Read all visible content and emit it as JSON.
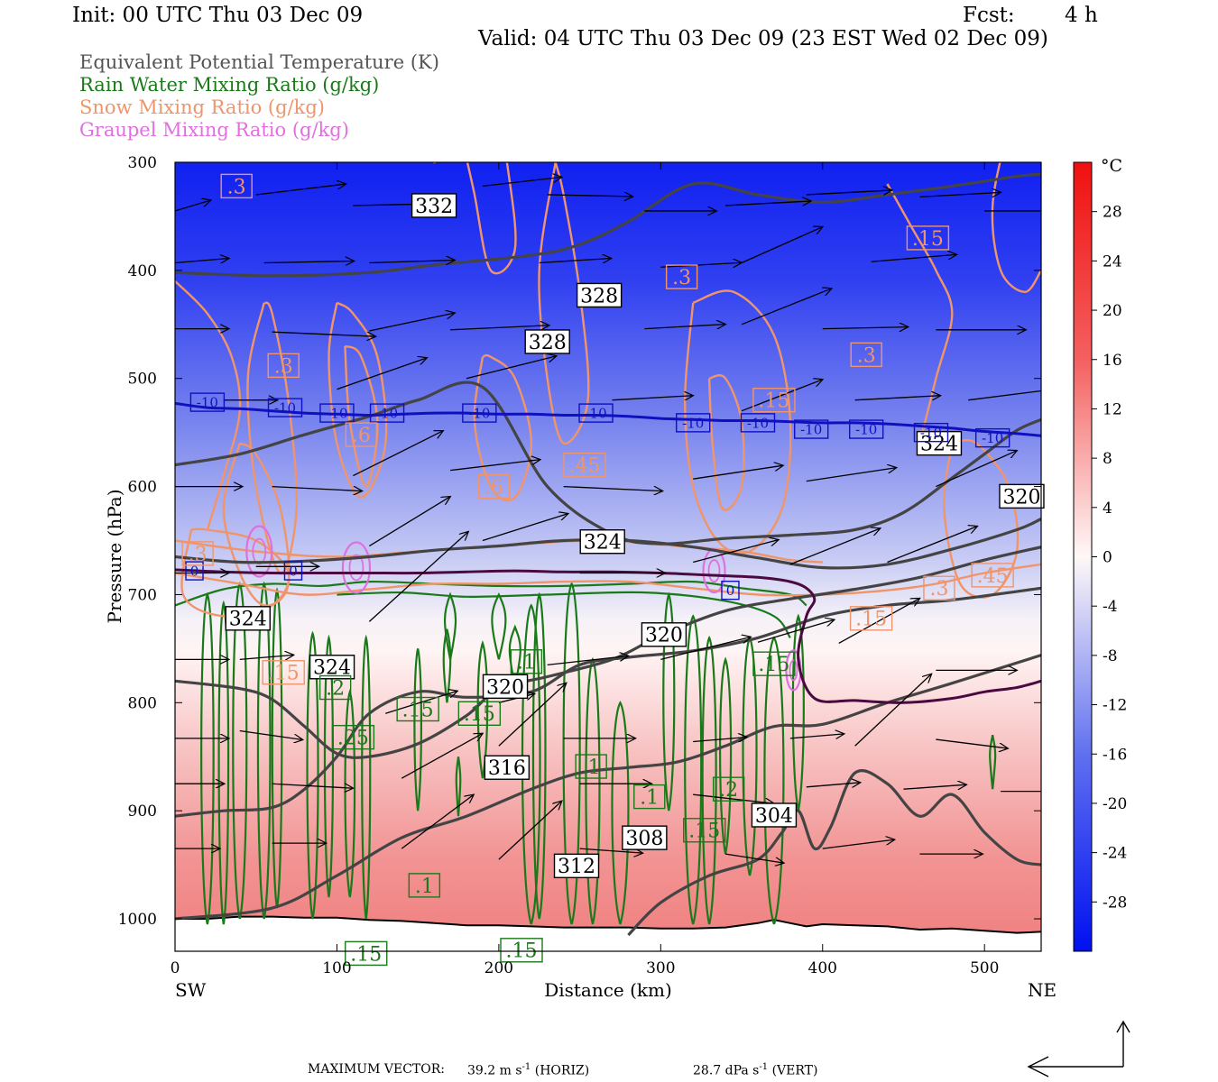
{
  "header": {
    "init": "Init: 00 UTC Thu 03 Dec 09",
    "fcst_label": "Fcst:",
    "fcst_value": "4 h",
    "valid": "Valid: 04 UTC Thu 03 Dec 09 (23 EST Wed 02 Dec 09)"
  },
  "legend": [
    {
      "label": "Equivalent Potential Temperature (K)",
      "color": "#555555"
    },
    {
      "label": "Rain Water Mixing Ratio (g/kg)",
      "color": "#1a7a1a"
    },
    {
      "label": "Snow Mixing Ratio (g/kg)",
      "color": "#f0956a"
    },
    {
      "label": "Graupel Mixing Ratio (g/kg)",
      "color": "#e070e0"
    }
  ],
  "chart_data": {
    "type": "heatmap",
    "title": "",
    "xlabel": "Distance (km)",
    "ylabel": "Pressure (hPa)",
    "xlim": [
      0,
      535
    ],
    "ylim": [
      1030,
      300
    ],
    "x_ticks": [
      0,
      100,
      200,
      300,
      400,
      500
    ],
    "y_ticks": [
      300,
      400,
      500,
      600,
      700,
      800,
      900,
      1000
    ],
    "x_end_labels": {
      "left": "SW",
      "right": "NE"
    },
    "colorbar": {
      "unit": "°C",
      "ticks": [
        28,
        24,
        20,
        16,
        12,
        8,
        4,
        0,
        -4,
        -8,
        -12,
        -16,
        -20,
        -24,
        -28
      ],
      "range": [
        -32,
        32
      ]
    },
    "isotherms": {
      "minus10": {
        "label": "-10",
        "color": "#1010c0",
        "points": [
          [
            0,
            523
          ],
          [
            20,
            527
          ],
          [
            40,
            528
          ],
          [
            60,
            530
          ],
          [
            80,
            532
          ],
          [
            100,
            533
          ],
          [
            120,
            534
          ],
          [
            140,
            533
          ],
          [
            160,
            532
          ],
          [
            180,
            532
          ],
          [
            200,
            533
          ],
          [
            220,
            533
          ],
          [
            240,
            534
          ],
          [
            260,
            534
          ],
          [
            280,
            535
          ],
          [
            300,
            537
          ],
          [
            320,
            538
          ],
          [
            340,
            539
          ],
          [
            360,
            539
          ],
          [
            380,
            540
          ],
          [
            400,
            541
          ],
          [
            420,
            541
          ],
          [
            440,
            542
          ],
          [
            460,
            544
          ],
          [
            480,
            546
          ],
          [
            500,
            549
          ],
          [
            520,
            551
          ],
          [
            535,
            553
          ]
        ]
      },
      "zero": {
        "label": "0",
        "color": "#4a0a40",
        "points": [
          [
            0,
            677
          ],
          [
            30,
            679
          ],
          [
            60,
            680
          ],
          [
            90,
            680
          ],
          [
            120,
            680
          ],
          [
            150,
            680
          ],
          [
            180,
            679
          ],
          [
            210,
            678
          ],
          [
            240,
            679
          ],
          [
            270,
            679
          ],
          [
            300,
            680
          ],
          [
            330,
            682
          ],
          [
            360,
            684
          ],
          [
            380,
            688
          ],
          [
            390,
            694
          ],
          [
            395,
            705
          ],
          [
            390,
            720
          ],
          [
            385,
            760
          ],
          [
            395,
            796
          ],
          [
            420,
            798
          ],
          [
            450,
            800
          ],
          [
            480,
            796
          ],
          [
            500,
            790
          ],
          [
            520,
            786
          ],
          [
            535,
            780
          ]
        ]
      }
    },
    "theta_e": {
      "color": "#444444",
      "lines": [
        {
          "value": 332,
          "points": [
            [
              0,
              296
            ],
            [
              60,
              298
            ],
            [
              120,
              288
            ],
            [
              140,
              263
            ],
            [
              160,
              232
            ],
            [
              180,
              210
            ],
            [
              220,
              192
            ],
            [
              260,
              189
            ],
            [
              300,
              187
            ],
            [
              340,
              186
            ],
            [
              380,
              185
            ],
            [
              420,
              184
            ],
            [
              440,
              184
            ],
            [
              460,
              182
            ],
            [
              480,
              182
            ],
            [
              500,
              180
            ]
          ]
        },
        {
          "value": 328,
          "points": [
            [
              0,
              402
            ],
            [
              60,
              405
            ],
            [
              120,
              402
            ],
            [
              160,
              395
            ],
            [
              220,
              386
            ],
            [
              250,
              376
            ],
            [
              280,
              355
            ],
            [
              320,
              320
            ],
            [
              360,
              330
            ],
            [
              400,
              337
            ],
            [
              440,
              330
            ],
            [
              480,
              322
            ],
            [
              520,
              313
            ],
            [
              535,
              311
            ]
          ]
        },
        {
          "value": 324,
          "points": [
            [
              0,
              580
            ],
            [
              40,
              570
            ],
            [
              80,
              552
            ],
            [
              120,
              535
            ],
            [
              150,
              520
            ],
            [
              190,
              508
            ],
            [
              230,
              600
            ],
            [
              270,
              644
            ],
            [
              300,
              653
            ],
            [
              340,
              648
            ],
            [
              380,
              645
            ],
            [
              420,
              640
            ],
            [
              450,
              624
            ],
            [
              480,
              592
            ],
            [
              500,
              570
            ],
            [
              520,
              548
            ],
            [
              535,
              538
            ]
          ]
        },
        {
          "value": 320,
          "points": [
            [
              0,
              665
            ],
            [
              40,
              670
            ],
            [
              80,
              669
            ],
            [
              120,
              665
            ],
            [
              160,
              659
            ],
            [
              200,
              655
            ],
            [
              240,
              650
            ],
            [
              280,
              650
            ],
            [
              320,
              656
            ],
            [
              360,
              666
            ],
            [
              400,
              675
            ],
            [
              440,
              672
            ],
            [
              480,
              658
            ],
            [
              520,
              640
            ],
            [
              535,
              630
            ]
          ]
        },
        {
          "value": 316,
          "points": [
            [
              0,
              780
            ],
            [
              40,
              787
            ],
            [
              60,
              797
            ],
            [
              80,
              822
            ],
            [
              100,
              847
            ],
            [
              120,
              850
            ],
            [
              150,
              838
            ],
            [
              180,
              812
            ],
            [
              200,
              787
            ],
            [
              230,
              776
            ],
            [
              270,
              760
            ],
            [
              300,
              738
            ],
            [
              340,
              715
            ],
            [
              380,
              704
            ],
            [
              420,
              695
            ],
            [
              460,
              684
            ],
            [
              500,
              668
            ],
            [
              535,
              656
            ]
          ]
        },
        {
          "value": 312,
          "points": [
            [
              0,
              905
            ],
            [
              30,
              900
            ],
            [
              60,
              897
            ],
            [
              80,
              880
            ],
            [
              100,
              850
            ],
            [
              120,
              810
            ],
            [
              150,
              790
            ],
            [
              180,
              795
            ],
            [
              220,
              790
            ],
            [
              250,
              765
            ],
            [
              280,
              758
            ],
            [
              320,
              752
            ],
            [
              360,
              740
            ],
            [
              400,
              720
            ],
            [
              440,
              710
            ],
            [
              480,
              705
            ],
            [
              535,
              694
            ]
          ]
        },
        {
          "value": 308,
          "points": [
            [
              0,
              1000
            ],
            [
              60,
              990
            ],
            [
              100,
              960
            ],
            [
              140,
              925
            ],
            [
              180,
              905
            ],
            [
              220,
              880
            ],
            [
              250,
              865
            ],
            [
              280,
              860
            ],
            [
              310,
              855
            ],
            [
              340,
              840
            ],
            [
              370,
              822
            ],
            [
              400,
              820
            ],
            [
              440,
              800
            ],
            [
              480,
              782
            ],
            [
              535,
              756
            ]
          ]
        },
        {
          "value": 304,
          "points": [
            [
              280,
              1015
            ],
            [
              300,
              985
            ],
            [
              330,
              960
            ],
            [
              360,
              945
            ],
            [
              375,
              920
            ],
            [
              385,
              900
            ],
            [
              395,
              935
            ],
            [
              405,
              915
            ],
            [
              420,
              865
            ],
            [
              440,
              875
            ],
            [
              460,
              905
            ],
            [
              480,
              885
            ],
            [
              500,
              920
            ],
            [
              520,
              945
            ],
            [
              535,
              950
            ]
          ]
        }
      ]
    },
    "contour_labels": {
      "theta_e": [
        {
          "text": "332",
          "x": 160,
          "p": 340
        },
        {
          "text": "328",
          "x": 262,
          "p": 423
        },
        {
          "text": "328",
          "x": 230,
          "p": 466
        },
        {
          "text": "324",
          "x": 472,
          "p": 560
        },
        {
          "text": "324",
          "x": 264,
          "p": 651
        },
        {
          "text": "324",
          "x": 45,
          "p": 722
        },
        {
          "text": "324",
          "x": 97,
          "p": 767
        },
        {
          "text": "320",
          "x": 523,
          "p": 609
        },
        {
          "text": "320",
          "x": 302,
          "p": 737
        },
        {
          "text": "320",
          "x": 204,
          "p": 785
        },
        {
          "text": "316",
          "x": 205,
          "p": 860
        },
        {
          "text": "312",
          "x": 248,
          "p": 951
        },
        {
          "text": "308",
          "x": 290,
          "p": 925
        },
        {
          "text": "304",
          "x": 370,
          "p": 904
        }
      ],
      "temp": [
        {
          "text": "-10",
          "x": 20,
          "p": 522
        },
        {
          "text": "-10",
          "x": 68,
          "p": 527
        },
        {
          "text": "-10",
          "x": 100,
          "p": 532
        },
        {
          "text": "-10",
          "x": 131,
          "p": 532
        },
        {
          "text": "-10",
          "x": 188,
          "p": 532
        },
        {
          "text": "-10",
          "x": 260,
          "p": 532
        },
        {
          "text": "-10",
          "x": 320,
          "p": 541
        },
        {
          "text": "-10",
          "x": 360,
          "p": 541
        },
        {
          "text": "-10",
          "x": 393,
          "p": 547
        },
        {
          "text": "-10",
          "x": 427,
          "p": 547
        },
        {
          "text": "-10",
          "x": 467,
          "p": 550
        },
        {
          "text": "-10",
          "x": 505,
          "p": 555
        },
        {
          "text": "0",
          "x": 12,
          "p": 678
        },
        {
          "text": "0",
          "x": 73,
          "p": 678
        },
        {
          "text": "0",
          "x": 343,
          "p": 696
        }
      ],
      "snow": [
        {
          "text": ".3",
          "x": 38,
          "p": 322
        },
        {
          "text": ".15",
          "x": 465,
          "p": 370
        },
        {
          "text": ".3",
          "x": 313,
          "p": 406
        },
        {
          "text": ".3",
          "x": 67,
          "p": 488
        },
        {
          "text": ".3",
          "x": 427,
          "p": 478
        },
        {
          "text": ".6",
          "x": 115,
          "p": 552
        },
        {
          "text": ".45",
          "x": 253,
          "p": 580
        },
        {
          "text": ".6",
          "x": 197,
          "p": 600
        },
        {
          "text": ".15",
          "x": 370,
          "p": 520
        },
        {
          "text": ".3",
          "x": 14,
          "p": 662
        },
        {
          "text": ".3",
          "x": 472,
          "p": 694
        },
        {
          "text": ".45",
          "x": 505,
          "p": 682
        },
        {
          "text": ".15",
          "x": 430,
          "p": 722
        },
        {
          "text": ".15",
          "x": 67,
          "p": 772
        }
      ],
      "rain": [
        {
          "text": ".2",
          "x": 99,
          "p": 786
        },
        {
          "text": ".15",
          "x": 150,
          "p": 806
        },
        {
          "text": ".15",
          "x": 188,
          "p": 810
        },
        {
          "text": ".25",
          "x": 110,
          "p": 832
        },
        {
          "text": ".1",
          "x": 217,
          "p": 762
        },
        {
          "text": ".1",
          "x": 257,
          "p": 859
        },
        {
          "text": ".15",
          "x": 370,
          "p": 764
        },
        {
          "text": ".1",
          "x": 293,
          "p": 887
        },
        {
          "text": ".2",
          "x": 342,
          "p": 880
        },
        {
          "text": ".15",
          "x": 327,
          "p": 918
        },
        {
          "text": ".1",
          "x": 154,
          "p": 969
        },
        {
          "text": ".15",
          "x": 118,
          "p": 1032
        },
        {
          "text": ".15",
          "x": 214,
          "p": 1029
        }
      ]
    }
  },
  "footer": {
    "max_vector_label": "MAXIMUM VECTOR:",
    "horiz_value": "39.2 m s",
    "horiz_exp": "-1",
    "horiz_unit": "(HORIZ)",
    "vert_value": "28.7 dPa s",
    "vert_exp": "-1",
    "vert_unit": "(VERT)"
  }
}
